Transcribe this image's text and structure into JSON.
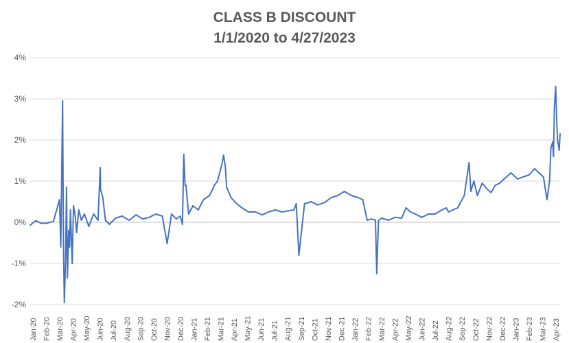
{
  "chart_data": {
    "type": "line",
    "title": "CLASS B DISCOUNT",
    "subtitle": "1/1/2020 to 4/27/2023",
    "xlabel": "",
    "ylabel": "",
    "ylim": [
      -0.02,
      0.04
    ],
    "y_ticks": [
      "-2%",
      "-1%",
      "0%",
      "1%",
      "2%",
      "3%",
      "4%"
    ],
    "x_ticks": [
      "Jan-20",
      "Feb-20",
      "Mar-20",
      "Apr-20",
      "May-20",
      "Jun-20",
      "Jul-20",
      "Aug-20",
      "Sep-20",
      "Oct-20",
      "Nov-20",
      "Dec-20",
      "Jan-21",
      "Feb-21",
      "Mar-21",
      "Apr-21",
      "May-21",
      "Jun-21",
      "Jul-21",
      "Aug-21",
      "Sep-21",
      "Oct-21",
      "Nov-21",
      "Dec-21",
      "Jan-22",
      "Feb-22",
      "Mar-22",
      "Apr-22",
      "May-22",
      "Jun-22",
      "Jul-22",
      "Aug-22",
      "Sep-22",
      "Oct-22",
      "Nov-22",
      "Dec-22",
      "Jan-23",
      "Feb-23",
      "Mar-23",
      "Apr-23"
    ],
    "grid": true,
    "legend": "none",
    "line_color": "#4472C4",
    "x": [
      "2020-01-02",
      "2020-01-15",
      "2020-01-28",
      "2020-02-10",
      "2020-02-24",
      "2020-03-05",
      "2020-03-09",
      "2020-03-12",
      "2020-03-16",
      "2020-03-18",
      "2020-03-20",
      "2020-03-23",
      "2020-03-25",
      "2020-03-27",
      "2020-03-30",
      "2020-04-01",
      "2020-04-03",
      "2020-04-07",
      "2020-04-10",
      "2020-04-14",
      "2020-04-17",
      "2020-04-22",
      "2020-04-28",
      "2020-05-05",
      "2020-05-15",
      "2020-05-26",
      "2020-06-05",
      "2020-06-10",
      "2020-06-11",
      "2020-06-12",
      "2020-06-16",
      "2020-06-22",
      "2020-07-01",
      "2020-07-15",
      "2020-07-30",
      "2020-08-15",
      "2020-08-31",
      "2020-09-15",
      "2020-09-30",
      "2020-10-15",
      "2020-10-30",
      "2020-11-10",
      "2020-11-20",
      "2020-12-01",
      "2020-12-10",
      "2020-12-15",
      "2020-12-18",
      "2020-12-21",
      "2020-12-23",
      "2020-12-29",
      "2021-01-08",
      "2021-01-20",
      "2021-02-01",
      "2021-02-15",
      "2021-02-26",
      "2021-03-05",
      "2021-03-15",
      "2021-03-19",
      "2021-03-23",
      "2021-03-26",
      "2021-04-05",
      "2021-04-15",
      "2021-04-30",
      "2021-05-15",
      "2021-05-31",
      "2021-06-15",
      "2021-06-30",
      "2021-07-15",
      "2021-07-31",
      "2021-08-15",
      "2021-08-27",
      "2021-09-01",
      "2021-09-03",
      "2021-09-07",
      "2021-09-20",
      "2021-10-05",
      "2021-10-20",
      "2021-11-05",
      "2021-11-20",
      "2021-12-05",
      "2021-12-20",
      "2022-01-05",
      "2022-01-20",
      "2022-01-31",
      "2022-02-10",
      "2022-02-20",
      "2022-03-01",
      "2022-03-04",
      "2022-03-08",
      "2022-03-15",
      "2022-03-31",
      "2022-04-15",
      "2022-04-30",
      "2022-05-10",
      "2022-05-20",
      "2022-05-31",
      "2022-06-15",
      "2022-06-30",
      "2022-07-15",
      "2022-07-31",
      "2022-08-10",
      "2022-08-15",
      "2022-08-25",
      "2022-09-05",
      "2022-09-20",
      "2022-10-01",
      "2022-10-05",
      "2022-10-12",
      "2022-10-20",
      "2022-10-31",
      "2022-11-10",
      "2022-11-20",
      "2022-11-30",
      "2022-12-10",
      "2022-12-20",
      "2023-01-05",
      "2023-01-20",
      "2023-02-01",
      "2023-02-15",
      "2023-02-28",
      "2023-03-10",
      "2023-03-20",
      "2023-03-28",
      "2023-04-03",
      "2023-04-06",
      "2023-04-10",
      "2023-04-12",
      "2023-04-14",
      "2023-04-17",
      "2023-04-19",
      "2023-04-21",
      "2023-04-25",
      "2023-04-27"
    ],
    "values": [
      -0.0007,
      0.0004,
      -0.0003,
      -0.0002,
      0.0002,
      0.004,
      0.0055,
      -0.006,
      0.0295,
      -0.004,
      -0.0195,
      -0.009,
      0.0085,
      -0.0135,
      -0.002,
      -0.006,
      0.003,
      -0.01,
      0.004,
      0.0015,
      -0.0025,
      0.003,
      0.0005,
      0.002,
      -0.001,
      0.002,
      0.0005,
      0.0133,
      0.008,
      0.0075,
      0.006,
      0.0005,
      -0.0005,
      0.001,
      0.0015,
      0.0005,
      0.0018,
      0.0008,
      0.0012,
      0.002,
      0.0015,
      -0.0052,
      0.002,
      0.0008,
      0.0015,
      -0.0005,
      0.0165,
      0.009,
      0.009,
      0.002,
      0.004,
      0.003,
      0.0055,
      0.0065,
      0.009,
      0.01,
      0.014,
      0.0163,
      0.0135,
      0.0085,
      0.006,
      0.0048,
      0.0035,
      0.0025,
      0.0025,
      0.0018,
      0.0025,
      0.003,
      0.0025,
      0.0028,
      0.003,
      0.0045,
      0.0005,
      -0.008,
      0.0045,
      0.005,
      0.0042,
      0.0048,
      0.006,
      0.0065,
      0.0075,
      0.0065,
      0.006,
      0.0055,
      0.0005,
      0.0008,
      0.0005,
      -0.0125,
      0.0004,
      0.001,
      0.0005,
      0.0012,
      0.001,
      0.0035,
      0.0025,
      0.002,
      0.0012,
      0.002,
      0.002,
      0.003,
      0.0035,
      0.0025,
      0.003,
      0.0035,
      0.0065,
      0.0145,
      0.0075,
      0.01,
      0.0065,
      0.0095,
      0.0082,
      0.0072,
      0.009,
      0.0095,
      0.0105,
      0.012,
      0.0105,
      0.011,
      0.0115,
      0.013,
      0.012,
      0.011,
      0.0055,
      0.01,
      0.018,
      0.0195,
      0.016,
      0.028,
      0.033,
      0.0255,
      0.02,
      0.0175,
      0.0215
    ]
  }
}
